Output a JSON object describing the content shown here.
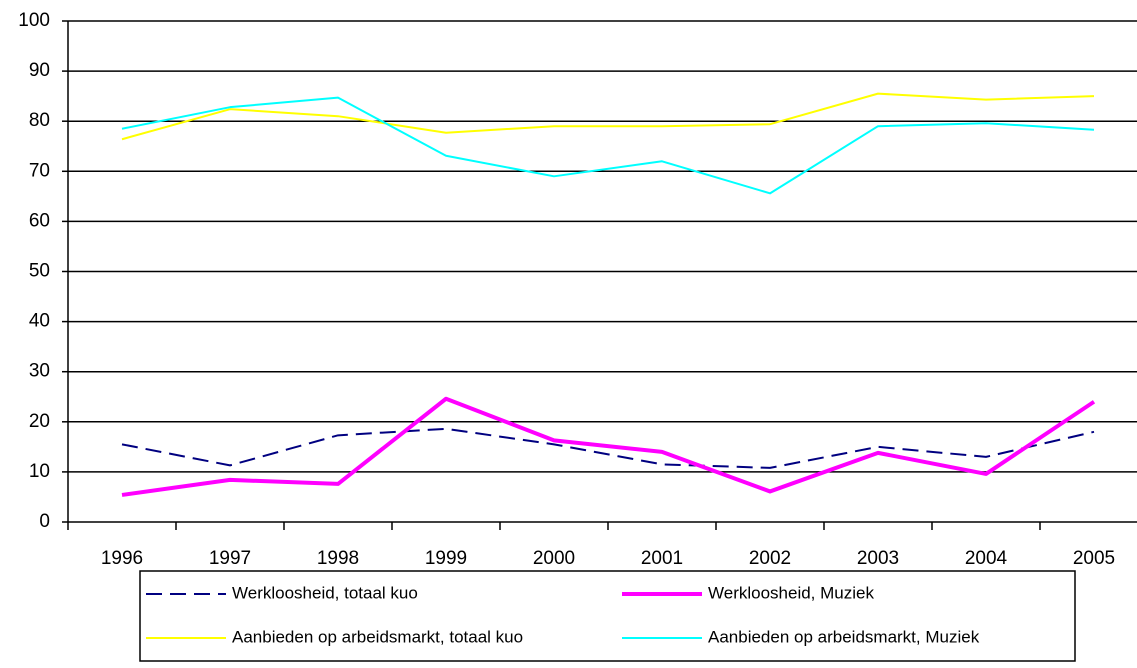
{
  "chart_data": {
    "type": "line",
    "categories": [
      "1996",
      "1997",
      "1998",
      "1999",
      "2000",
      "2001",
      "2002",
      "2003",
      "2004",
      "2005"
    ],
    "series": [
      {
        "name": "Werkloosheid, totaal kuo",
        "color": "#000080",
        "dashed": true,
        "width": 2,
        "values": [
          15.5,
          11.3,
          17.3,
          18.6,
          15.5,
          11.5,
          10.8,
          15.0,
          13.0,
          18.0
        ]
      },
      {
        "name": "Werkloosheid, Muziek",
        "color": "#ff00ff",
        "dashed": false,
        "width": 4,
        "values": [
          5.4,
          8.4,
          7.6,
          24.6,
          16.3,
          14.0,
          6.1,
          13.8,
          9.6,
          24.0
        ]
      },
      {
        "name": "Aanbieden op arbeidsmarkt, totaal kuo",
        "color": "#ffff00",
        "dashed": false,
        "width": 2,
        "values": [
          76.4,
          82.4,
          81.0,
          77.7,
          79.0,
          79.0,
          79.4,
          85.5,
          84.3,
          85.0
        ]
      },
      {
        "name": "Aanbieden op arbeidsmarkt, Muziek",
        "color": "#00ffff",
        "dashed": false,
        "width": 2,
        "values": [
          78.5,
          82.8,
          84.7,
          73.1,
          69.0,
          72.0,
          65.6,
          79.0,
          79.6,
          78.3
        ]
      }
    ],
    "ylim": [
      0,
      100
    ],
    "yticks": [
      0,
      10,
      20,
      30,
      40,
      50,
      60,
      70,
      80,
      90,
      100
    ],
    "grid": true,
    "legend": "bottom"
  }
}
